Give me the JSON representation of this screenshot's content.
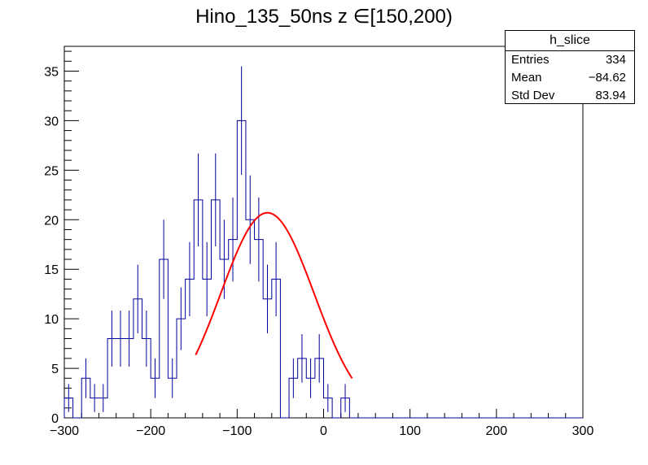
{
  "chart_data": {
    "type": "histogram",
    "title": "Hino_135_50ns z  ∈[150,200)",
    "xlabel": "",
    "ylabel": "",
    "xlim": [
      -300,
      300
    ],
    "ylim": [
      0,
      37.5
    ],
    "x_ticks": [
      -300,
      -200,
      -100,
      0,
      100,
      200,
      300
    ],
    "x_tick_labels": [
      "−300",
      "−200",
      "−100",
      "0",
      "100",
      "200",
      "300"
    ],
    "y_ticks": [
      0,
      5,
      10,
      15,
      20,
      25,
      30,
      35
    ],
    "y_tick_labels": [
      "0",
      "5",
      "10",
      "15",
      "20",
      "25",
      "30",
      "35"
    ],
    "grid": false,
    "bin_width": 10,
    "bin_edges_start": -300,
    "counts": [
      2,
      0,
      4,
      2,
      2,
      8,
      8,
      8,
      12,
      8,
      4,
      16,
      4,
      10,
      14,
      22,
      14,
      22,
      16,
      18,
      30,
      20,
      18,
      12,
      14,
      0,
      4,
      6,
      4,
      6,
      2,
      0,
      2,
      0,
      0,
      0,
      0,
      0,
      0,
      0,
      0,
      0,
      0,
      0,
      0,
      0,
      0,
      0,
      0,
      0,
      0,
      0,
      0,
      0,
      0,
      0,
      0,
      0,
      0,
      0
    ],
    "histogram_color": "#000099",
    "fit": {
      "type": "gauss",
      "color": "#ff0000",
      "amplitude": 20.7,
      "mean": -65,
      "sigma": 54,
      "range": [
        -148,
        33
      ]
    },
    "stats_box": {
      "name": "h_slice",
      "rows": [
        {
          "key": "Entries",
          "value": "334"
        },
        {
          "key": "Mean",
          "value": "−84.62"
        },
        {
          "key": "Std Dev",
          "value": "83.94"
        }
      ]
    }
  }
}
